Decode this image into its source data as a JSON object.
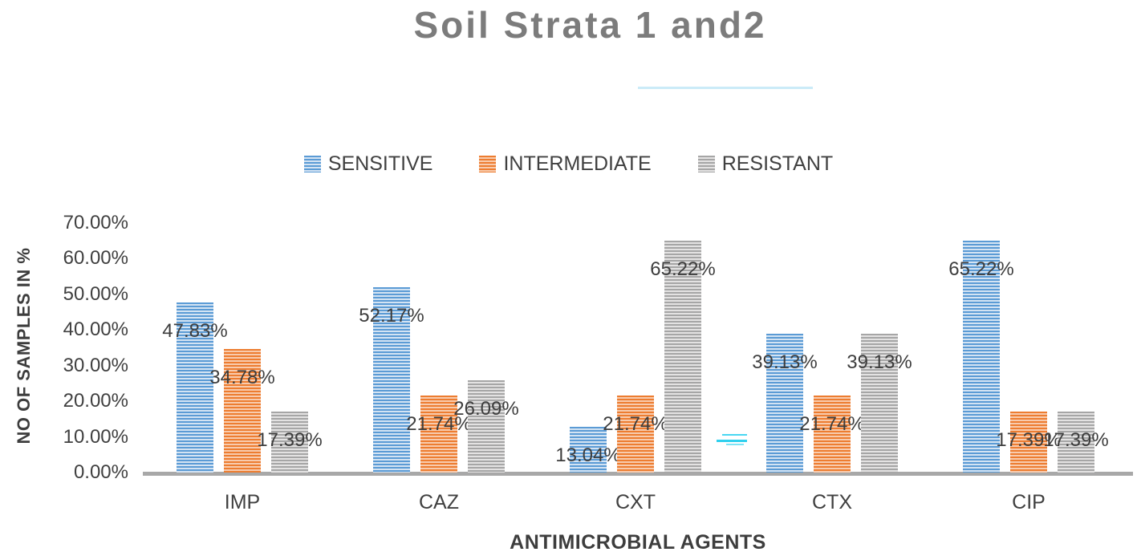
{
  "chart_data": {
    "type": "bar",
    "title": "Soil Strata 1 and2",
    "xlabel": "ANTIMICROBIAL AGENTS",
    "ylabel": "NO OF SAMPLES IN %",
    "categories": [
      "IMP",
      "CAZ",
      "CXT",
      "CTX",
      "CIP"
    ],
    "series": [
      {
        "name": "SENSITIVE",
        "color": "#5b9bd5",
        "stripe_color": "#d3e3f3",
        "values": [
          47.83,
          52.17,
          13.04,
          39.13,
          65.22
        ]
      },
      {
        "name": "INTERMEDIATE",
        "color": "#ed7d31",
        "stripe_color": "#f8cbad",
        "values": [
          34.78,
          21.74,
          21.74,
          21.74,
          17.39
        ]
      },
      {
        "name": "RESISTANT",
        "color": "#a6a6a6",
        "stripe_color": "#e3e2e2",
        "values": [
          17.39,
          26.09,
          65.22,
          39.13,
          17.39
        ]
      }
    ],
    "data_labels": [
      [
        "47.83%",
        "52.17%",
        "13.04%",
        "39.13%",
        "65.22%"
      ],
      [
        "34.78%",
        "21.74%",
        "21.74%",
        "21.74%",
        "17.39%"
      ],
      [
        "17.39%",
        "26.09%",
        "65.22%",
        "39.13%",
        "17.39%"
      ]
    ],
    "yticks": [
      "0.00%",
      "10.00%",
      "20.00%",
      "30.00%",
      "40.00%",
      "50.00%",
      "60.00%",
      "70.00%"
    ],
    "ylim": [
      0,
      70
    ],
    "legend_position": "top",
    "legend_entries": [
      "SENSITIVE",
      "INTERMEDIATE",
      "RESISTANT"
    ],
    "grid": false,
    "bar_pattern": "horizontal-stripes",
    "axis_line_color": "#a8a8a8",
    "text_color": "#404040",
    "title_color": "#7c7c7c"
  }
}
